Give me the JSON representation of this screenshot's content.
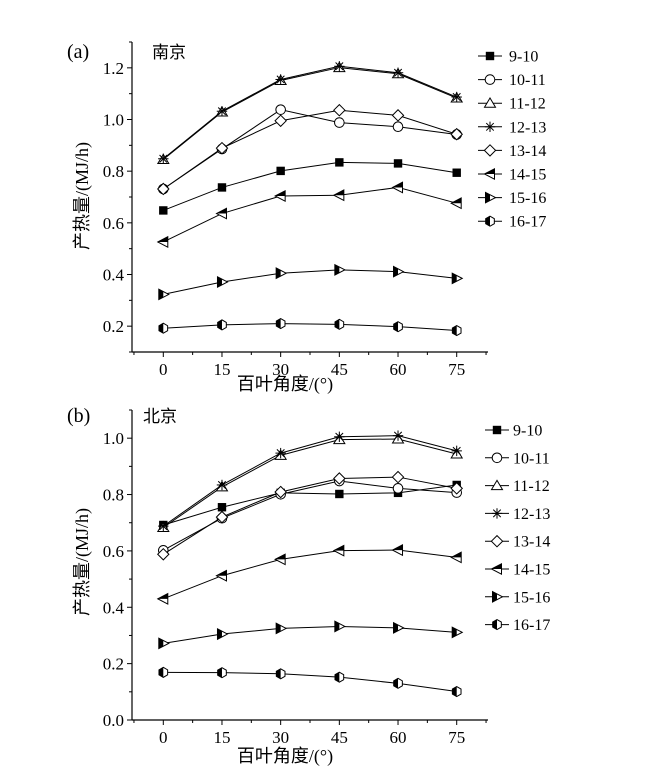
{
  "chart_data": [
    {
      "type": "line",
      "panel_label": "(a)",
      "title": "南京",
      "xlabel": "百叶角度/(°)",
      "ylabel": "产热量/(MJ/h)",
      "x": [
        0,
        15,
        30,
        45,
        60,
        75
      ],
      "x_ticks": [
        "0",
        "15",
        "30",
        "45",
        "60",
        "75"
      ],
      "xlim": [
        -8,
        83
      ],
      "ylim": [
        0.1,
        1.3
      ],
      "y_ticks": [
        "0.2",
        "0.4",
        "0.6",
        "0.8",
        "1.0",
        "1.2"
      ],
      "legend_position": "right",
      "grid": false,
      "series": [
        {
          "name": "9-10",
          "marker": "square-filled",
          "values": [
            0.648,
            0.737,
            0.801,
            0.834,
            0.83,
            0.794
          ]
        },
        {
          "name": "10-11",
          "marker": "circle-open",
          "values": [
            0.731,
            0.886,
            1.038,
            0.988,
            0.972,
            0.942
          ]
        },
        {
          "name": "11-12",
          "marker": "triangle-up-open",
          "values": [
            0.845,
            1.029,
            1.151,
            1.201,
            1.177,
            1.083
          ]
        },
        {
          "name": "12-13",
          "marker": "asterisk",
          "values": [
            0.848,
            1.032,
            1.155,
            1.206,
            1.181,
            1.087
          ]
        },
        {
          "name": "13-14",
          "marker": "diamond-open",
          "values": [
            0.731,
            0.889,
            0.995,
            1.036,
            1.016,
            0.943
          ]
        },
        {
          "name": "14-15",
          "marker": "triangle-left-half",
          "values": [
            0.526,
            0.636,
            0.704,
            0.707,
            0.737,
            0.676
          ]
        },
        {
          "name": "15-16",
          "marker": "triangle-right-half",
          "values": [
            0.323,
            0.371,
            0.405,
            0.418,
            0.411,
            0.385
          ]
        },
        {
          "name": "16-17",
          "marker": "hexagon-half",
          "values": [
            0.192,
            0.205,
            0.21,
            0.207,
            0.198,
            0.183
          ]
        }
      ]
    },
    {
      "type": "line",
      "panel_label": "(b)",
      "title": "北京",
      "xlabel": "百叶角度/(°)",
      "ylabel": "产热量/(MJ/h)",
      "x": [
        0,
        15,
        30,
        45,
        60,
        75
      ],
      "x_ticks": [
        "0",
        "15",
        "30",
        "45",
        "60",
        "75"
      ],
      "xlim": [
        -8,
        83
      ],
      "ylim": [
        0.0,
        1.1
      ],
      "y_ticks": [
        "0.0",
        "0.2",
        "0.4",
        "0.6",
        "0.8",
        "1.0"
      ],
      "legend_position": "right",
      "grid": false,
      "series": [
        {
          "name": "9-10",
          "marker": "square-filled",
          "values": [
            0.692,
            0.755,
            0.806,
            0.802,
            0.806,
            0.834
          ]
        },
        {
          "name": "10-11",
          "marker": "circle-open",
          "values": [
            0.602,
            0.716,
            0.801,
            0.848,
            0.822,
            0.807
          ]
        },
        {
          "name": "11-12",
          "marker": "triangle-up-open",
          "values": [
            0.683,
            0.827,
            0.939,
            0.995,
            0.997,
            0.944
          ]
        },
        {
          "name": "12-13",
          "marker": "asterisk",
          "values": [
            0.688,
            0.834,
            0.947,
            1.005,
            1.009,
            0.955
          ]
        },
        {
          "name": "13-14",
          "marker": "diamond-open",
          "values": [
            0.588,
            0.72,
            0.809,
            0.857,
            0.862,
            0.822
          ]
        },
        {
          "name": "14-15",
          "marker": "triangle-left-half",
          "values": [
            0.43,
            0.512,
            0.57,
            0.601,
            0.603,
            0.577
          ]
        },
        {
          "name": "15-16",
          "marker": "triangle-right-half",
          "values": [
            0.272,
            0.305,
            0.325,
            0.332,
            0.327,
            0.311
          ]
        },
        {
          "name": "16-17",
          "marker": "hexagon-half",
          "values": [
            0.169,
            0.168,
            0.164,
            0.152,
            0.13,
            0.101
          ]
        }
      ]
    }
  ]
}
